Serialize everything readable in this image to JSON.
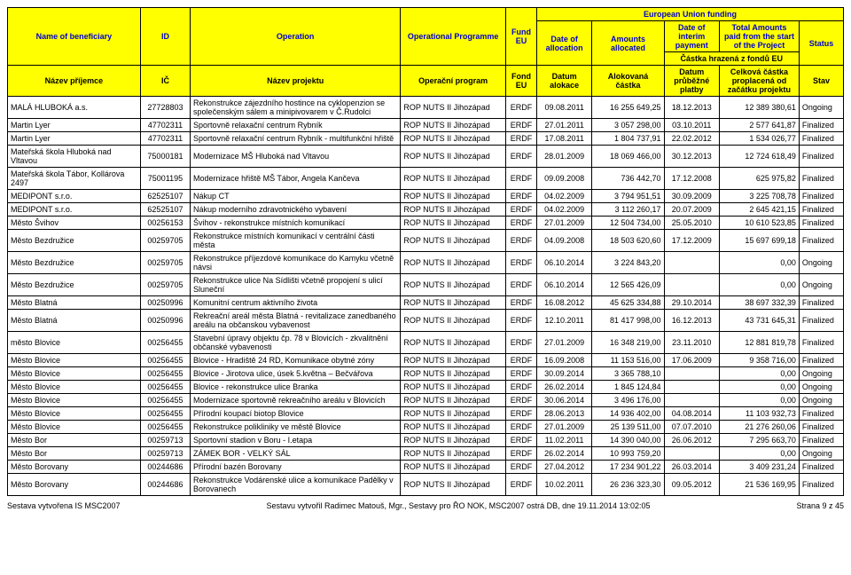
{
  "header": {
    "eu_funding": "European Union funding",
    "castka_fondu": "Částka hrazená z fondů EU",
    "en": {
      "beneficiary": "Name of beneficiary",
      "id": "ID",
      "operation": "Operation",
      "programme": "Operational Programme",
      "fund": "Fund EU",
      "date_alloc": "Date of allocation",
      "amounts": "Amounts allocated",
      "date_interim": "Date of interim payment",
      "total": "Total Amounts paid from the start of the Project",
      "status": "Status"
    },
    "cz": {
      "beneficiary": "Název příjemce",
      "id": "IČ",
      "operation": "Název projektu",
      "programme": "Operační program",
      "fund": "Fond EU",
      "date_alloc": "Datum alokace",
      "amounts": "Alokovaná částka",
      "date_interim": "Datum průběžné platby",
      "total": "Celková částka proplacená od začátku projektu",
      "status": "Stav"
    }
  },
  "rows": [
    {
      "ben": "MALÁ HLUBOKÁ a.s.",
      "id": "27728803",
      "op": "Rekonstrukce zájezdního hostince na cyklopenzion se společenským sálem a minipivovarem v Č.Rudolci",
      "prg": "ROP NUTS II Jihozápad",
      "fund": "ERDF",
      "da": "09.08.2011",
      "amt": "16 255 649,25",
      "dp": "18.12.2013",
      "tot": "12 389 380,61",
      "st": "Ongoing"
    },
    {
      "ben": "Martin Lyer",
      "id": "47702311",
      "op": "Sportovně relaxační centrum Rybník",
      "prg": "ROP NUTS II Jihozápad",
      "fund": "ERDF",
      "da": "27.01.2011",
      "amt": "3 057 298,00",
      "dp": "03.10.2011",
      "tot": "2 577 641,87",
      "st": "Finalized"
    },
    {
      "ben": "Martin Lyer",
      "id": "47702311",
      "op": "Sportovně relaxační centrum Rybník - multifunkční hřiště",
      "prg": "ROP NUTS II Jihozápad",
      "fund": "ERDF",
      "da": "17.08.2011",
      "amt": "1 804 737,91",
      "dp": "22.02.2012",
      "tot": "1 534 026,77",
      "st": "Finalized"
    },
    {
      "ben": "Mateřská škola Hluboká nad Vltavou",
      "id": "75000181",
      "op": "Modernizace MŠ Hluboká nad Vltavou",
      "prg": "ROP NUTS II Jihozápad",
      "fund": "ERDF",
      "da": "28.01.2009",
      "amt": "18 069 466,00",
      "dp": "30.12.2013",
      "tot": "12 724 618,49",
      "st": "Finalized"
    },
    {
      "ben": "Mateřská škola Tábor, Kollárova 2497",
      "id": "75001195",
      "op": "Modernizace hřiště MŠ Tábor, Angela Kančeva",
      "prg": "ROP NUTS II Jihozápad",
      "fund": "ERDF",
      "da": "09.09.2008",
      "amt": "736 442,70",
      "dp": "17.12.2008",
      "tot": "625 975,82",
      "st": "Finalized"
    },
    {
      "ben": "MEDIPONT s.r.o.",
      "id": "62525107",
      "op": "Nákup CT",
      "prg": "ROP NUTS II Jihozápad",
      "fund": "ERDF",
      "da": "04.02.2009",
      "amt": "3 794 951,51",
      "dp": "30.09.2009",
      "tot": "3 225 708,78",
      "st": "Finalized"
    },
    {
      "ben": "MEDIPONT s.r.o.",
      "id": "62525107",
      "op": "Nákup moderního zdravotnického vybavení",
      "prg": "ROP NUTS II Jihozápad",
      "fund": "ERDF",
      "da": "04.02.2009",
      "amt": "3 112 260,17",
      "dp": "20.07.2009",
      "tot": "2 645 421,15",
      "st": "Finalized"
    },
    {
      "ben": "Město  Švihov",
      "id": "00256153",
      "op": "Švihov - rekonstrukce místních komunikací",
      "prg": "ROP NUTS II Jihozápad",
      "fund": "ERDF",
      "da": "27.01.2009",
      "amt": "12 504 734,00",
      "dp": "25.05.2010",
      "tot": "10 610 523,85",
      "st": "Finalized"
    },
    {
      "ben": "Město Bezdružice",
      "id": "00259705",
      "op": "Rekonstrukce místních komunikací v centrální části města",
      "prg": "ROP NUTS II Jihozápad",
      "fund": "ERDF",
      "da": "04.09.2008",
      "amt": "18 503 620,60",
      "dp": "17.12.2009",
      "tot": "15 697 699,18",
      "st": "Finalized"
    },
    {
      "ben": "Město Bezdružice",
      "id": "00259705",
      "op": "Rekonstrukce příjezdové komunikace do Kamyku včetně návsi",
      "prg": "ROP NUTS II Jihozápad",
      "fund": "ERDF",
      "da": "06.10.2014",
      "amt": "3 224 843,20",
      "dp": "",
      "tot": "0,00",
      "st": "Ongoing"
    },
    {
      "ben": "Město Bezdružice",
      "id": "00259705",
      "op": "Rekonstrukce ulice Na Sídlišti včetně propojení s ulicí Sluneční",
      "prg": "ROP NUTS II Jihozápad",
      "fund": "ERDF",
      "da": "06.10.2014",
      "amt": "12 565 426,09",
      "dp": "",
      "tot": "0,00",
      "st": "Ongoing"
    },
    {
      "ben": "Město Blatná",
      "id": "00250996",
      "op": "Komunitní centrum aktivního života",
      "prg": "ROP NUTS II Jihozápad",
      "fund": "ERDF",
      "da": "16.08.2012",
      "amt": "45 625 334,88",
      "dp": "29.10.2014",
      "tot": "38 697 332,39",
      "st": "Finalized"
    },
    {
      "ben": "Město Blatná",
      "id": "00250996",
      "op": "Rekreační areál města Blatná - revitalizace zanedbaného areálu na občanskou vybavenost",
      "prg": "ROP NUTS II Jihozápad",
      "fund": "ERDF",
      "da": "12.10.2011",
      "amt": "81 417 998,00",
      "dp": "16.12.2013",
      "tot": "43 731 645,31",
      "st": "Finalized"
    },
    {
      "ben": "město Blovice",
      "id": "00256455",
      "op": "Stavební úpravy objektu čp. 78 v Blovicích - zkvalitnění občanské vybavenosti",
      "prg": "ROP NUTS II Jihozápad",
      "fund": "ERDF",
      "da": "27.01.2009",
      "amt": "16 348 219,00",
      "dp": "23.11.2010",
      "tot": "12 881 819,78",
      "st": "Finalized"
    },
    {
      "ben": "Město Blovice",
      "id": "00256455",
      "op": "Blovice - Hradiště 24 RD, Komunikace obytné zóny",
      "prg": "ROP NUTS II Jihozápad",
      "fund": "ERDF",
      "da": "16.09.2008",
      "amt": "11 153 516,00",
      "dp": "17.06.2009",
      "tot": "9 358 716,00",
      "st": "Finalized"
    },
    {
      "ben": "Město Blovice",
      "id": "00256455",
      "op": "Blovice - Jirotova ulice, úsek 5.května – Bečvářova",
      "prg": "ROP NUTS II Jihozápad",
      "fund": "ERDF",
      "da": "30.09.2014",
      "amt": "3 365 788,10",
      "dp": "",
      "tot": "0,00",
      "st": "Ongoing"
    },
    {
      "ben": "Město Blovice",
      "id": "00256455",
      "op": "Blovice - rekonstrukce ulice Branka",
      "prg": "ROP NUTS II Jihozápad",
      "fund": "ERDF",
      "da": "26.02.2014",
      "amt": "1 845 124,84",
      "dp": "",
      "tot": "0,00",
      "st": "Ongoing"
    },
    {
      "ben": "Město Blovice",
      "id": "00256455",
      "op": "Modernizace sportovně rekreačního areálu v Blovicích",
      "prg": "ROP NUTS II Jihozápad",
      "fund": "ERDF",
      "da": "30.06.2014",
      "amt": "3 496 176,00",
      "dp": "",
      "tot": "0,00",
      "st": "Ongoing"
    },
    {
      "ben": "Město Blovice",
      "id": "00256455",
      "op": "Přírodní koupací biotop Blovice",
      "prg": "ROP NUTS II Jihozápad",
      "fund": "ERDF",
      "da": "28.06.2013",
      "amt": "14 936 402,00",
      "dp": "04.08.2014",
      "tot": "11 103 932,73",
      "st": "Finalized"
    },
    {
      "ben": "Město Blovice",
      "id": "00256455",
      "op": "Rekonstrukce polikliniky ve městě Blovice",
      "prg": "ROP NUTS II Jihozápad",
      "fund": "ERDF",
      "da": "27.01.2009",
      "amt": "25 139 511,00",
      "dp": "07.07.2010",
      "tot": "21 276 260,06",
      "st": "Finalized"
    },
    {
      "ben": "Město Bor",
      "id": "00259713",
      "op": "Sportovní stadion v Boru - I.etapa",
      "prg": "ROP NUTS II Jihozápad",
      "fund": "ERDF",
      "da": "11.02.2011",
      "amt": "14 390 040,00",
      "dp": "26.06.2012",
      "tot": "7 295 663,70",
      "st": "Finalized"
    },
    {
      "ben": "Město Bor",
      "id": "00259713",
      "op": "ZÁMEK BOR - VELKÝ SÁL",
      "prg": "ROP NUTS II Jihozápad",
      "fund": "ERDF",
      "da": "26.02.2014",
      "amt": "10 993 759,20",
      "dp": "",
      "tot": "0,00",
      "st": "Ongoing"
    },
    {
      "ben": "Město Borovany",
      "id": "00244686",
      "op": "Přírodní bazén Borovany",
      "prg": "ROP NUTS II Jihozápad",
      "fund": "ERDF",
      "da": "27.04.2012",
      "amt": "17 234 901,22",
      "dp": "26.03.2014",
      "tot": "3 409 231,24",
      "st": "Finalized"
    },
    {
      "ben": "Město Borovany",
      "id": "00244686",
      "op": "Rekonstrukce Vodárenské ulice a komunikace Padělky v Borovanech",
      "prg": "ROP NUTS II Jihozápad",
      "fund": "ERDF",
      "da": "10.02.2011",
      "amt": "26 236 323,30",
      "dp": "09.05.2012",
      "tot": "21 536 169,95",
      "st": "Finalized"
    }
  ],
  "footer": {
    "left": "Sestava vytvořena IS MSC2007",
    "center": "Sestavu vytvořil Radimec Matouš, Mgr., Sestavy pro ŘO NOK, MSC2007 ostrá DB, dne 19.11.2014 13:02:05",
    "right": "Strana 9 z 45"
  }
}
